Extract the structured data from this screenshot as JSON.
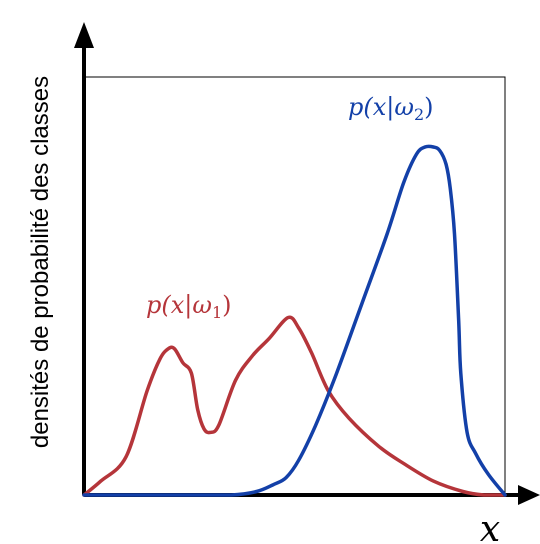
{
  "chart_data": {
    "type": "line",
    "ylabel": "densités de probabilité des classes",
    "xlabel": "x",
    "xlim": [
      0,
      1
    ],
    "ylim": [
      0,
      1
    ],
    "grid": false,
    "series": [
      {
        "name": "p(x|ω1)",
        "label_parts": {
          "func": "p(",
          "var": "x",
          "bar": "|",
          "greek": "ω",
          "sub": "1",
          "close": ")"
        },
        "color": "#b5353a",
        "x": [
          0.0,
          0.04,
          0.1,
          0.15,
          0.18,
          0.2,
          0.215,
          0.235,
          0.255,
          0.27,
          0.285,
          0.3,
          0.32,
          0.36,
          0.4,
          0.44,
          0.485,
          0.51,
          0.54,
          0.58,
          0.63,
          0.7,
          0.76,
          0.83,
          0.9,
          0.95,
          1.0
        ],
        "y": [
          0.0,
          0.04,
          0.11,
          0.3,
          0.39,
          0.42,
          0.42,
          0.38,
          0.35,
          0.245,
          0.19,
          0.18,
          0.2,
          0.33,
          0.4,
          0.45,
          0.51,
          0.48,
          0.41,
          0.3,
          0.22,
          0.14,
          0.09,
          0.04,
          0.01,
          0.0,
          0.0
        ]
      },
      {
        "name": "p(x|ω2)",
        "label_parts": {
          "func": "p(",
          "var": "x",
          "bar": "|",
          "greek": "ω",
          "sub": "2",
          "close": ")"
        },
        "color": "#1340a8",
        "x": [
          0.0,
          0.1,
          0.25,
          0.35,
          0.41,
          0.45,
          0.48,
          0.51,
          0.55,
          0.6,
          0.66,
          0.72,
          0.76,
          0.79,
          0.81,
          0.83,
          0.845,
          0.86,
          0.87,
          0.88,
          0.89,
          0.895,
          0.91,
          0.93,
          0.96,
          1.0
        ],
        "y": [
          0.0,
          0.0,
          0.0,
          0.0,
          0.01,
          0.03,
          0.05,
          0.1,
          0.2,
          0.35,
          0.55,
          0.75,
          0.9,
          0.98,
          1.0,
          1.0,
          0.99,
          0.95,
          0.88,
          0.75,
          0.5,
          0.35,
          0.18,
          0.12,
          0.06,
          0.0
        ]
      }
    ]
  }
}
